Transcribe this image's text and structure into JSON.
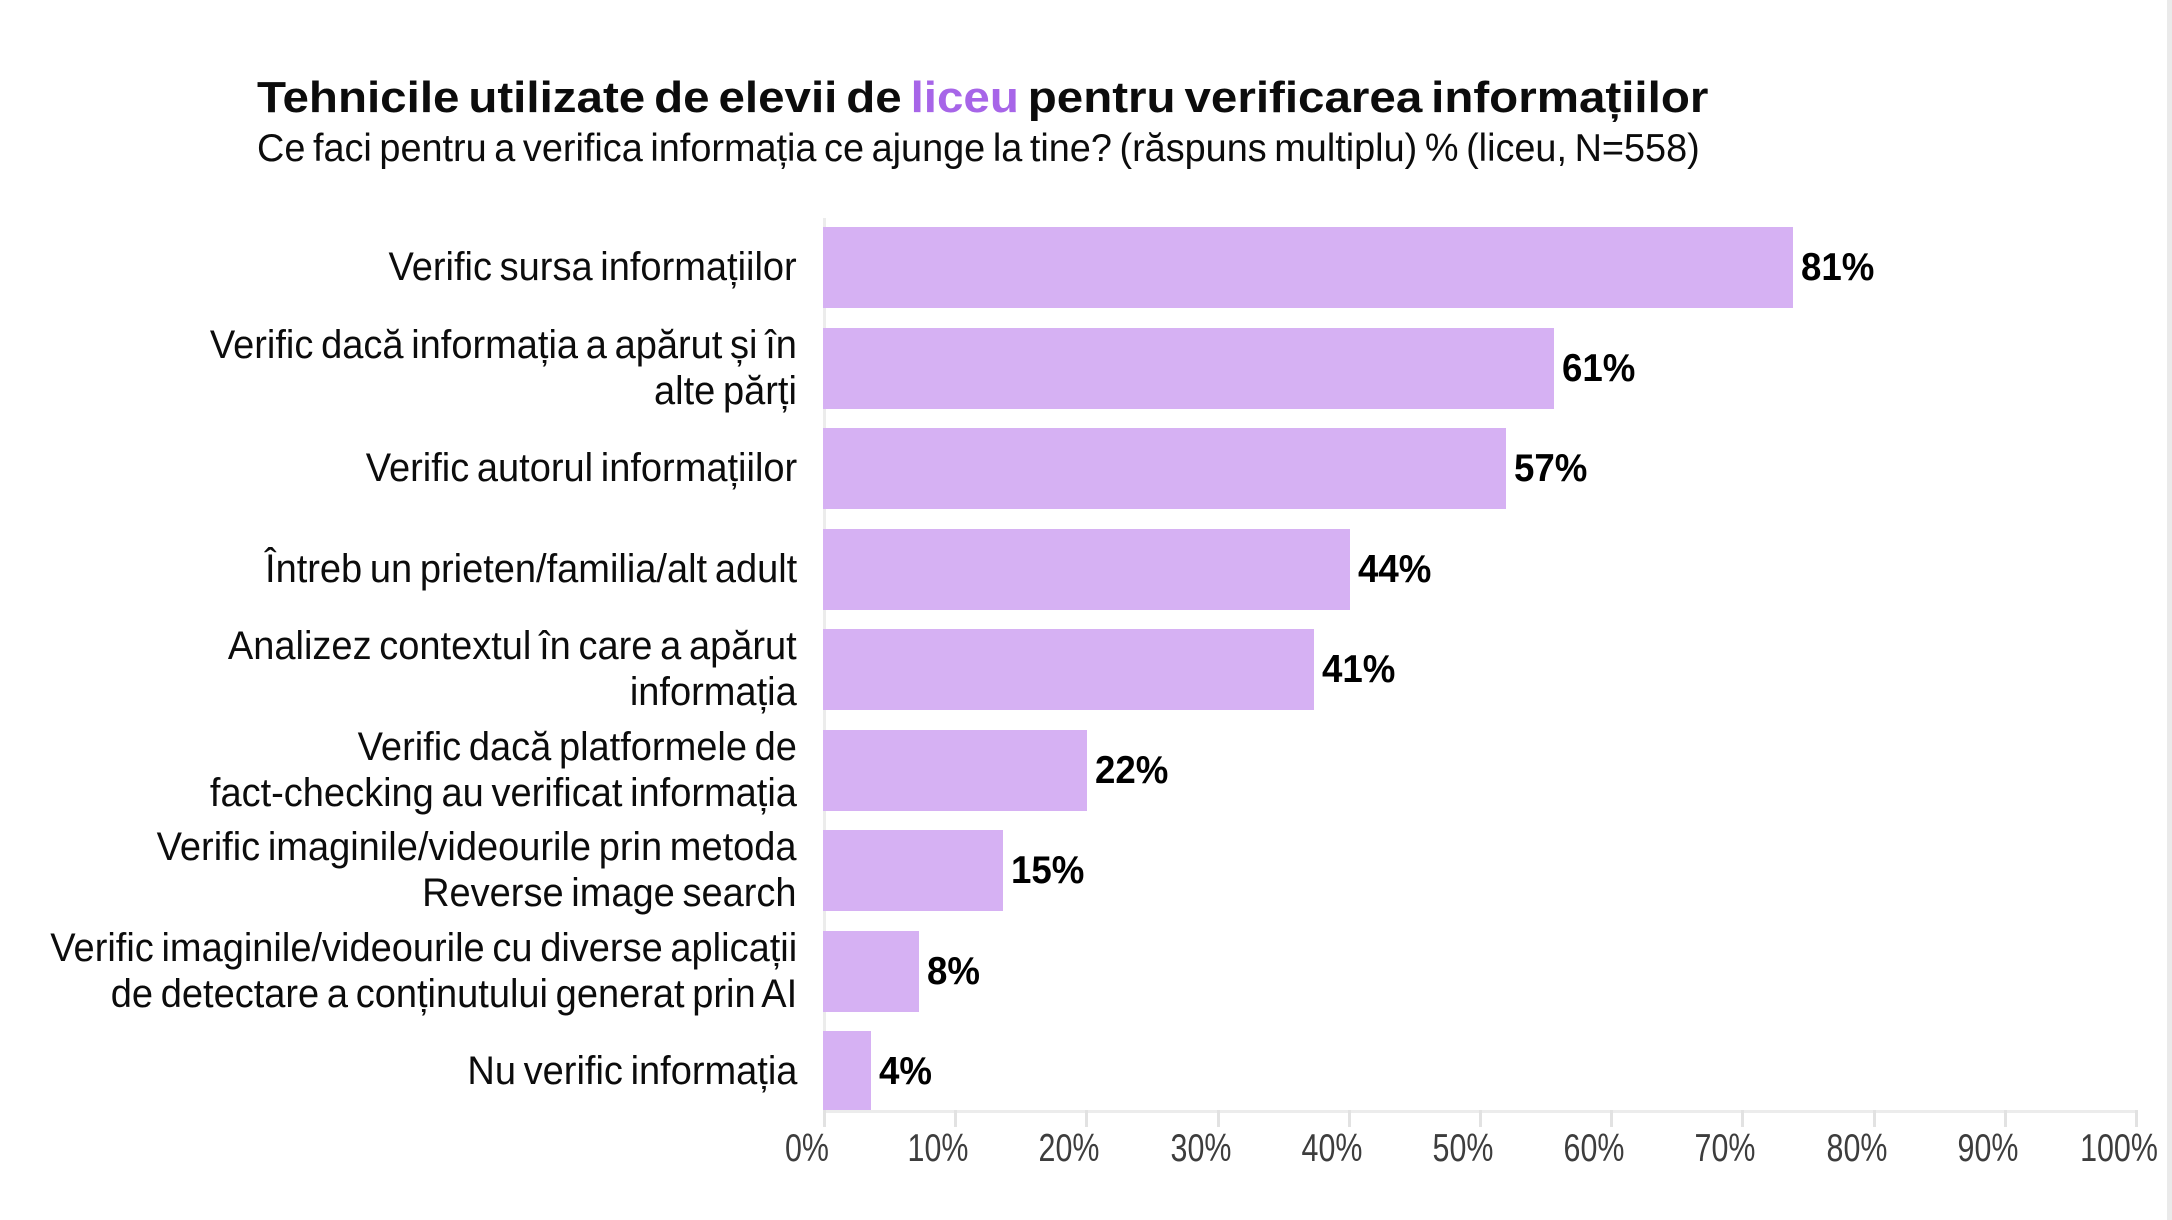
{
  "title": {
    "prefix": "Tehnicile utilizate de elevii de ",
    "highlight": "liceu",
    "suffix": " pentru verificarea informațiilor"
  },
  "subtitle": "Ce faci pentru a verifica informația ce ajunge la tine? (răspuns multiplu) % (liceu, N=558)",
  "colors": {
    "bar": "#d6b1f3",
    "highlight": "#a765e8",
    "axis_line": "#ececec",
    "tick_mark": "#e2e2e2",
    "tick_label": "#3d3d3d",
    "text": "#0c0c0c"
  },
  "chart_data": {
    "type": "bar",
    "orientation": "horizontal",
    "title": "Tehnicile utilizate de elevii de liceu pentru verificarea informațiilor",
    "subtitle": "Ce faci pentru a verifica informația ce ajunge la tine? (răspuns multiplu) % (liceu, N=558)",
    "categories": [
      "Verific sursa informațiilor",
      "Verific dacă informația a apărut și în\nalte părți",
      "Verific autorul informațiilor",
      "Întreb un prieten/familia/alt adult",
      "Analizez contextul în care a apărut\ninformația",
      "Verific dacă platformele de\nfact-checking au verificat informația",
      "Verific imaginile/videourile prin metoda\nReverse image search",
      "Verific imaginile/videourile cu diverse aplicații\nde detectare a conținutului generat prin AI",
      "Nu verific informația"
    ],
    "values": [
      81,
      61,
      57,
      44,
      41,
      22,
      15,
      8,
      4
    ],
    "value_labels": [
      "81%",
      "61%",
      "57%",
      "44%",
      "41%",
      "22%",
      "15%",
      "8%",
      "4%"
    ],
    "xlim": [
      0,
      100
    ],
    "x_tick_labels": [
      "0%",
      "10%",
      "20%",
      "30%",
      "40%",
      "50%",
      "60%",
      "70%",
      "80%",
      "90%",
      "100%"
    ],
    "grid": false,
    "legend": false
  }
}
